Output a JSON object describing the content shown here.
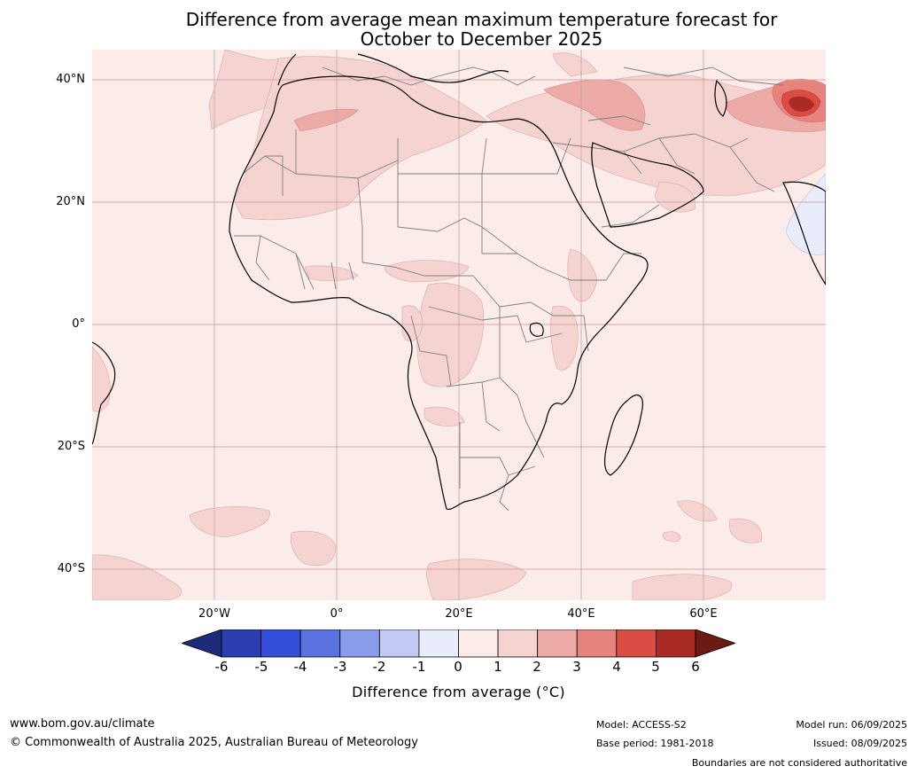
{
  "title": {
    "line1": "Difference from average mean maximum temperature forecast for",
    "line2": "October to December 2025"
  },
  "map": {
    "lat_ticks": [
      "40°N",
      "20°N",
      "0°",
      "20°S",
      "40°S"
    ],
    "lon_ticks": [
      "20°W",
      "0°",
      "20°E",
      "40°E",
      "60°E"
    ],
    "colors": {
      "ocean_base": "#fbebe9",
      "land_base": "#fbebe9",
      "anomaly_0_1": "#fbebe9",
      "anomaly_1_2": "#f5d3d0",
      "anomaly_2_3": "#ebaaa6",
      "anomaly_3_4": "#e6837d",
      "anomaly_4_5": "#d94d44",
      "anomaly_5_6": "#a92b24",
      "anomaly_neg_1_0": "#e9ecfb",
      "coastline": "#000000",
      "borders": "#808080",
      "gridlines": "#d8a7a7"
    }
  },
  "colorbar": {
    "title": "Difference from average (°C)",
    "labels": [
      "-6",
      "-5",
      "-4",
      "-3",
      "-2",
      "-1",
      "0",
      "1",
      "2",
      "3",
      "4",
      "5",
      "6"
    ],
    "colors": [
      "#1e2a7a",
      "#2a3eb0",
      "#334ed9",
      "#5a72e0",
      "#8a9bea",
      "#c2c9f3",
      "#e9ecfb",
      "#fbebe9",
      "#f5d3d0",
      "#ebaaa6",
      "#e6837d",
      "#d94d44",
      "#a92b24",
      "#6b1a14"
    ]
  },
  "footer": {
    "website": "www.bom.gov.au/climate",
    "copyright": "© Commonwealth of Australia 2025, Australian Bureau of Meteorology",
    "model": "Model: ACCESS-S2",
    "base_period": "Base period: 1981-2018",
    "model_run": "Model run: 06/09/2025",
    "issued": "Issued: 08/09/2025",
    "disclaimer": "Boundaries are not considered authoritative"
  }
}
